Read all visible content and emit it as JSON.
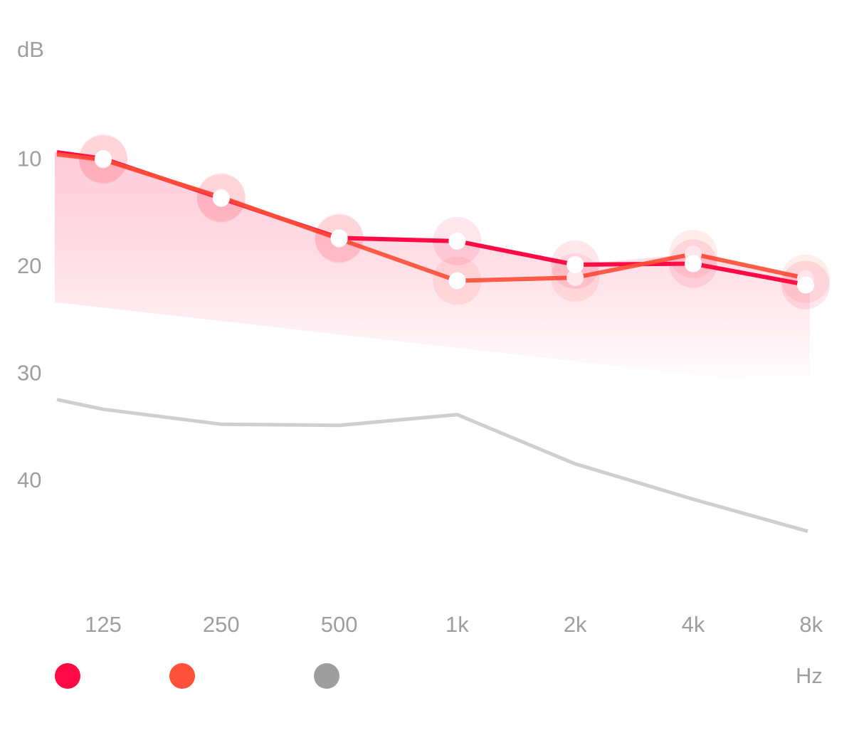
{
  "chart_data": {
    "type": "line",
    "ylabel": "dB",
    "xlabel": "Hz",
    "categories": [
      "125",
      "250",
      "500",
      "1k",
      "2k",
      "4k",
      "8k"
    ],
    "y_ticks": [
      "10",
      "20",
      "30",
      "40"
    ],
    "ylim": [
      0,
      48
    ],
    "y_inverted": true,
    "grid_lines_at": [
      0,
      10
    ],
    "legend": "bottom-left",
    "series": [
      {
        "color": "#ff0a45",
        "values": [
          10.1,
          13.8,
          17.5,
          17.8,
          20.0,
          19.9,
          21.9
        ],
        "start_value": 9.5
      },
      {
        "color": "#ff5039",
        "values": [
          10.2,
          13.7,
          17.6,
          21.5,
          21.2,
          19.0,
          21.3
        ],
        "start_value": 9.7
      },
      {
        "color": "#cfcfcf",
        "values": [
          33.5,
          34.9,
          35.0,
          34.0,
          38.6,
          41.9,
          44.9
        ],
        "start_value": 32.6
      }
    ],
    "legend_colors": [
      "#ff0a45",
      "#ff5039",
      "#9e9e9e"
    ]
  }
}
